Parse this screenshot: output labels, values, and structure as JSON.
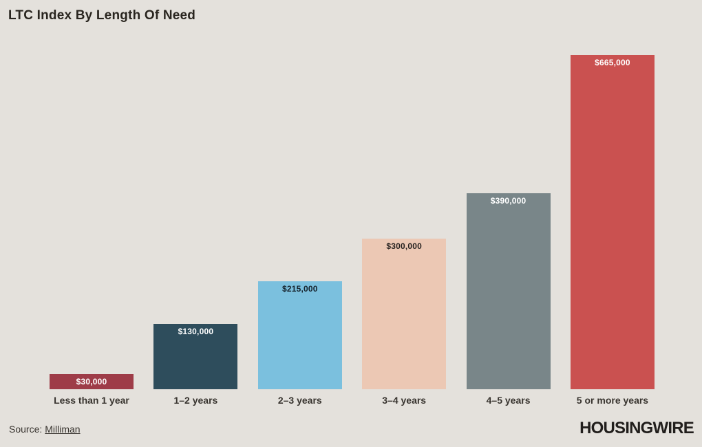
{
  "page": {
    "background": "#e4e1dc",
    "text_color": "#38342f",
    "title_color": "#29251f"
  },
  "title": "LTC Index By Length Of Need",
  "chart_data": {
    "type": "bar",
    "title": "LTC Index By Length Of Need",
    "categories": [
      "Less than 1 year",
      "1–2 years",
      "2–3 years",
      "3–4 years",
      "4–5 years",
      "5 or more years"
    ],
    "values": [
      30000,
      130000,
      215000,
      300000,
      390000,
      665000
    ],
    "value_labels": [
      "$30,000",
      "$130,000",
      "$215,000",
      "$300,000",
      "$390,000",
      "$665,000"
    ],
    "bar_colors": [
      "#9e3c48",
      "#2e4d5c",
      "#7bc0de",
      "#ecc8b4",
      "#798689",
      "#ca5150"
    ],
    "value_label_colors": [
      "#ffffff",
      "#ffffff",
      "#17242e",
      "#272220",
      "#ffffff",
      "#ffffff"
    ],
    "xlabel": "",
    "ylabel": "",
    "ylim": [
      0,
      665000
    ],
    "grid": false,
    "legend": false,
    "axis_lines": false
  },
  "footer": {
    "source_prefix": "Source:",
    "source_link": "Milliman",
    "logo": "HOUSINGWIRE",
    "logo_color": "#211e1c"
  }
}
